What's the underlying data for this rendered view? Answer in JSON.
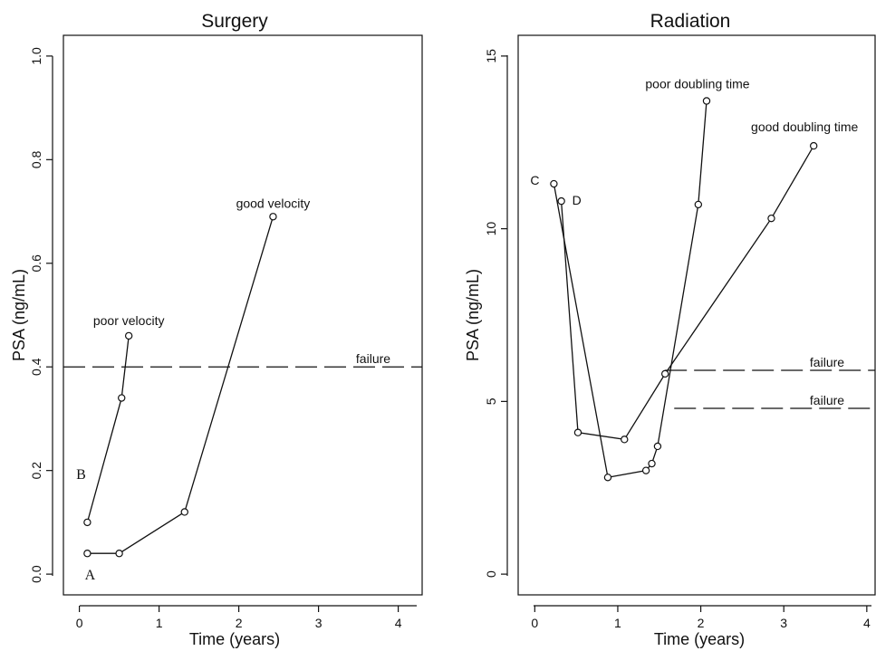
{
  "chart_data": [
    {
      "type": "line",
      "title": "Surgery",
      "xlabel": "Time (years)",
      "ylabel": "PSA (ng/mL)",
      "xlim": [
        -0.2,
        4.3
      ],
      "ylim": [
        -0.04,
        1.04
      ],
      "xticks": [
        0,
        1,
        2,
        3,
        4
      ],
      "xtick_labels": [
        "0",
        "1",
        "2",
        "3",
        "4"
      ],
      "yticks": [
        0.0,
        0.2,
        0.4,
        0.6,
        0.8,
        1.0
      ],
      "ytick_labels": [
        "0.0",
        "0.2",
        "0.4",
        "0.6",
        "0.8",
        "1.0"
      ],
      "frame": "box",
      "series": [
        {
          "name": "B",
          "x": [
            0.1,
            0.53,
            0.62
          ],
          "y": [
            0.1,
            0.34,
            0.46
          ],
          "end_label": "poor velocity"
        },
        {
          "name": "A",
          "x": [
            0.1,
            0.5,
            1.32,
            2.43
          ],
          "y": [
            0.04,
            0.04,
            0.12,
            0.69
          ],
          "end_label": "good velocity"
        }
      ],
      "thresholds": [
        {
          "label": "failure",
          "y": 0.4,
          "x_from": -0.2,
          "x_to": 4.3
        }
      ],
      "annotations": [
        {
          "text": "poor velocity",
          "x": 0.62,
          "y": 0.46
        },
        {
          "text": "good velocity",
          "x": 2.43,
          "y": 0.69
        },
        {
          "text": "B",
          "x": 0.1,
          "y": 0.18
        },
        {
          "text": "A",
          "x": 0.1,
          "y": 0.0
        }
      ]
    },
    {
      "type": "line",
      "title": "Radiation",
      "xlabel": "Time (years)",
      "ylabel": "PSA (ng/mL)",
      "xlim": [
        -0.2,
        4.1
      ],
      "ylim": [
        -0.6,
        15.6
      ],
      "xticks": [
        0,
        1,
        2,
        3,
        4
      ],
      "xtick_labels": [
        "0",
        "1",
        "2",
        "3",
        "4"
      ],
      "yticks": [
        0,
        5,
        10,
        15
      ],
      "ytick_labels": [
        "0",
        "5",
        "10",
        "15"
      ],
      "frame": "box",
      "series": [
        {
          "name": "C",
          "x": [
            0.23,
            0.88,
            1.34,
            1.41,
            1.48,
            1.97,
            2.07
          ],
          "y": [
            11.3,
            2.8,
            3.0,
            3.2,
            3.7,
            10.7,
            13.7
          ],
          "end_label": "poor doubling time"
        },
        {
          "name": "D",
          "x": [
            0.32,
            0.52,
            1.08,
            1.57,
            2.85,
            3.36
          ],
          "y": [
            10.8,
            4.1,
            3.9,
            5.8,
            10.3,
            12.4
          ],
          "end_label": "good doubling time"
        }
      ],
      "thresholds": [
        {
          "label": "failure",
          "y": 5.9,
          "x_from": 1.57,
          "x_to": 4.1
        },
        {
          "label": "failure",
          "y": 4.8,
          "x_from": 1.68,
          "x_to": 4.1
        }
      ],
      "annotations": [
        {
          "text": "poor doubling time",
          "x": 2.07,
          "y": 13.7
        },
        {
          "text": "good doubling time",
          "x": 3.36,
          "y": 12.4
        },
        {
          "text": "C",
          "x": 0.23,
          "y": 11.3
        },
        {
          "text": "D",
          "x": 0.32,
          "y": 10.8
        }
      ]
    }
  ]
}
